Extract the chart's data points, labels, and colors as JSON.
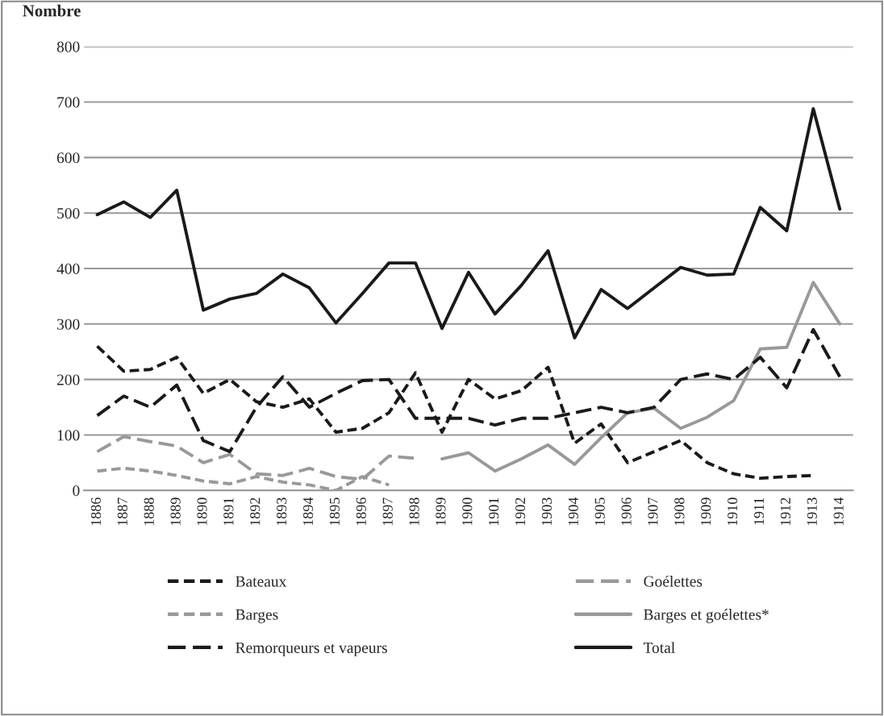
{
  "chart_data": {
    "type": "line",
    "ylabel": "Nombre",
    "categories": [
      "1886",
      "1887",
      "1888",
      "1889",
      "1890",
      "1891",
      "1892",
      "1893",
      "1894",
      "1895",
      "1896",
      "1897",
      "1898",
      "1899",
      "1900",
      "1901",
      "1902",
      "1903",
      "1904",
      "1905",
      "1906",
      "1907",
      "1908",
      "1909",
      "1910",
      "1911",
      "1912",
      "1913",
      "1914"
    ],
    "series": [
      {
        "name": "Bateaux",
        "color": "#1a1a1a",
        "line_style": "dashed",
        "values": [
          260,
          215,
          218,
          240,
          175,
          200,
          160,
          150,
          165,
          105,
          112,
          140,
          212,
          105,
          200,
          165,
          180,
          222,
          85,
          120,
          50,
          70,
          90,
          50,
          30,
          22,
          25,
          27,
          null
        ]
      },
      {
        "name": "Goélettes",
        "color": "#999999",
        "line_style": "dashed",
        "values": [
          70,
          97,
          88,
          80,
          50,
          65,
          30,
          27,
          40,
          25,
          20,
          62,
          58,
          null,
          null,
          null,
          null,
          null,
          null,
          null,
          null,
          null,
          null,
          null,
          null,
          null,
          null,
          null,
          null
        ]
      },
      {
        "name": "Barges",
        "color": "#999999",
        "line_style": "dashed",
        "values": [
          35,
          40,
          35,
          27,
          17,
          12,
          25,
          15,
          10,
          0,
          25,
          10,
          null,
          null,
          null,
          null,
          null,
          null,
          null,
          null,
          null,
          null,
          null,
          null,
          null,
          null,
          null,
          null,
          null
        ]
      },
      {
        "name": "Barges et goélettes*",
        "color": "#999999",
        "line_style": "solid",
        "values": [
          null,
          null,
          null,
          null,
          null,
          null,
          null,
          null,
          null,
          null,
          null,
          null,
          null,
          57,
          68,
          35,
          57,
          82,
          47,
          95,
          140,
          148,
          112,
          132,
          162,
          255,
          258,
          375,
          300
        ]
      },
      {
        "name": "Remorqueurs et vapeurs",
        "color": "#1a1a1a",
        "line_style": "dashed",
        "values": [
          135,
          170,
          150,
          190,
          90,
          70,
          150,
          205,
          150,
          175,
          198,
          200,
          130,
          130,
          130,
          118,
          130,
          130,
          140,
          150,
          140,
          150,
          200,
          210,
          200,
          240,
          185,
          290,
          205
        ]
      },
      {
        "name": "Total",
        "color": "#1a1a1a",
        "line_style": "solid",
        "values": [
          497,
          520,
          492,
          541,
          325,
          345,
          355,
          390,
          365,
          302,
          355,
          410,
          410,
          292,
          393,
          318,
          370,
          432,
          275,
          362,
          328,
          365,
          402,
          388,
          390,
          510,
          468,
          688,
          507
        ]
      }
    ],
    "ylim": [
      0,
      800
    ],
    "yticks": [
      0,
      100,
      200,
      300,
      400,
      500,
      600,
      700,
      800
    ],
    "grid": "y",
    "legend": "bottom",
    "marker": "none"
  }
}
